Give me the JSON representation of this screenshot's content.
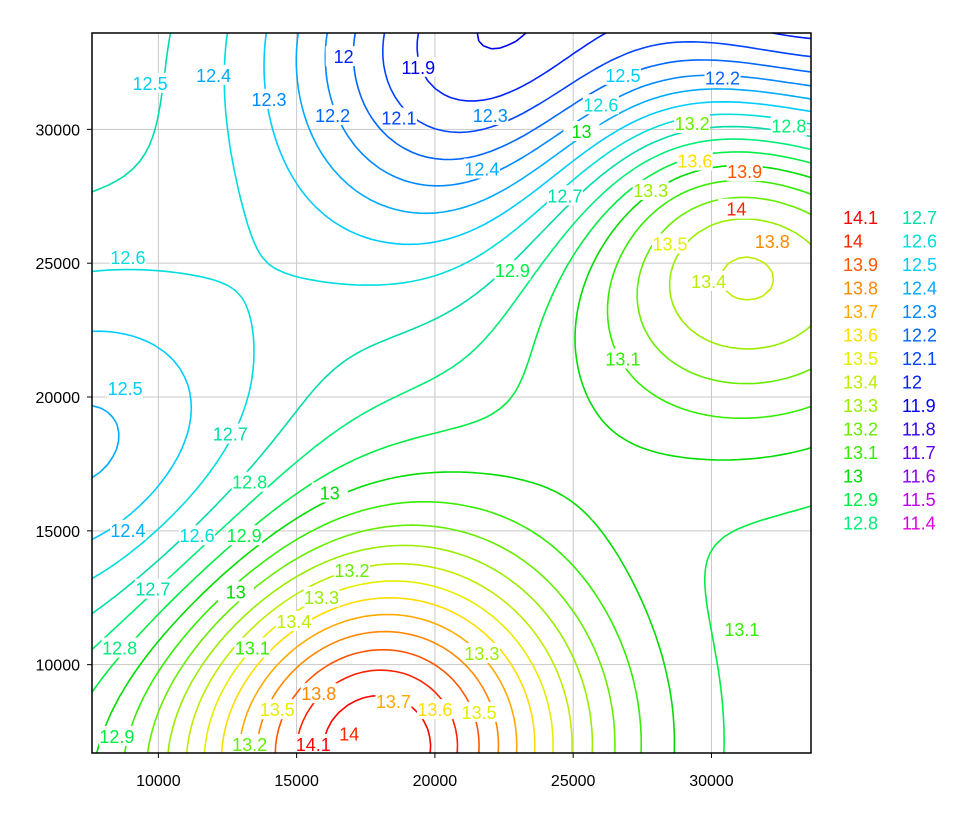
{
  "chart_data": {
    "type": "contour",
    "xlim": [
      7600,
      33600
    ],
    "ylim": [
      6700,
      33600
    ],
    "x_ticks": [
      10000,
      15000,
      20000,
      25000,
      30000
    ],
    "x_tick_labels": [
      "10000",
      "15000",
      "20000",
      "25000",
      "30000"
    ],
    "y_ticks": [
      10000,
      15000,
      20000,
      25000,
      30000
    ],
    "y_tick_labels": [
      "10000",
      "15000",
      "20000",
      "25000",
      "30000"
    ],
    "grid": true,
    "legend_placement": "right",
    "levels": [
      "14.1",
      "14",
      "13.9",
      "13.8",
      "13.7",
      "13.6",
      "13.5",
      "13.4",
      "13.3",
      "13.2",
      "13.1",
      "13",
      "12.9",
      "12.8",
      "12.7",
      "12.6",
      "12.5",
      "12.4",
      "12.3",
      "12.2",
      "12.1",
      "12",
      "11.9",
      "11.8",
      "11.7",
      "11.6",
      "11.5",
      "11.4"
    ],
    "level_colors": {
      "14.1": "#ff0000",
      "14": "#ff2200",
      "13.9": "#ff5500",
      "13.8": "#ff8800",
      "13.7": "#ffaa00",
      "13.6": "#ffdd00",
      "13.5": "#e6ee00",
      "13.4": "#bbee00",
      "13.3": "#99ee00",
      "13.2": "#66ee00",
      "13.1": "#33ee00",
      "13": "#00dd00",
      "12.9": "#00ee44",
      "12.8": "#00ee77",
      "12.7": "#00ddaa",
      "12.6": "#00dddd",
      "12.5": "#00ccff",
      "12.4": "#00aaff",
      "12.3": "#0088ff",
      "12.2": "#0066ff",
      "12.1": "#0044ff",
      "12": "#0022ff",
      "11.9": "#0000ee",
      "11.8": "#3300ee",
      "11.7": "#6600ee",
      "11.6": "#8800ee",
      "11.5": "#bb00ee",
      "11.4": "#dd00dd"
    },
    "sources": [
      {
        "x": 17800,
        "y": 7000,
        "value": 14.2,
        "kind": "high"
      },
      {
        "x": 31300,
        "y": 28000,
        "value": 14.05,
        "kind": "high"
      },
      {
        "x": 22200,
        "y": 32600,
        "value": 11.85,
        "kind": "low"
      },
      {
        "x": 33600,
        "y": 33600,
        "value": 11.4,
        "kind": "low"
      },
      {
        "x": 7700,
        "y": 17500,
        "value": 12.35,
        "kind": "low"
      }
    ],
    "contour_labels": [
      {
        "text": "12.5",
        "x": 9700,
        "y": 31700
      },
      {
        "text": "12.4",
        "x": 12000,
        "y": 32000
      },
      {
        "text": "12.3",
        "x": 14000,
        "y": 31100
      },
      {
        "text": "12.2",
        "x": 16300,
        "y": 30500
      },
      {
        "text": "12.1",
        "x": 18700,
        "y": 30400
      },
      {
        "text": "12",
        "x": 16700,
        "y": 32700
      },
      {
        "text": "11.9",
        "x": 19400,
        "y": 32300
      },
      {
        "text": "12.3",
        "x": 22000,
        "y": 30500
      },
      {
        "text": "12.4",
        "x": 21700,
        "y": 28500
      },
      {
        "text": "12.5",
        "x": 26800,
        "y": 32000
      },
      {
        "text": "12.6",
        "x": 26000,
        "y": 30900
      },
      {
        "text": "12.2",
        "x": 30400,
        "y": 31900
      },
      {
        "text": "12.8",
        "x": 32800,
        "y": 30100
      },
      {
        "text": "13",
        "x": 25300,
        "y": 29900
      },
      {
        "text": "12.7",
        "x": 24700,
        "y": 27500
      },
      {
        "text": "13.2",
        "x": 29300,
        "y": 30200
      },
      {
        "text": "13.3",
        "x": 27800,
        "y": 27700
      },
      {
        "text": "13.6",
        "x": 29400,
        "y": 28800
      },
      {
        "text": "13.9",
        "x": 31200,
        "y": 28400
      },
      {
        "text": "14",
        "x": 30900,
        "y": 27000
      },
      {
        "text": "13.8",
        "x": 32200,
        "y": 25800
      },
      {
        "text": "13.5",
        "x": 28500,
        "y": 25700
      },
      {
        "text": "13.4",
        "x": 29900,
        "y": 24300
      },
      {
        "text": "12.9",
        "x": 22800,
        "y": 24700
      },
      {
        "text": "13.1",
        "x": 26800,
        "y": 21400
      },
      {
        "text": "12.6",
        "x": 8900,
        "y": 25200
      },
      {
        "text": "12.5",
        "x": 8800,
        "y": 20300
      },
      {
        "text": "12.7",
        "x": 12600,
        "y": 18600
      },
      {
        "text": "12.8",
        "x": 13300,
        "y": 16800
      },
      {
        "text": "13",
        "x": 16200,
        "y": 16400
      },
      {
        "text": "12.4",
        "x": 8900,
        "y": 15000
      },
      {
        "text": "12.6",
        "x": 11400,
        "y": 14800
      },
      {
        "text": "12.9",
        "x": 13100,
        "y": 14800
      },
      {
        "text": "12.7",
        "x": 9800,
        "y": 12800
      },
      {
        "text": "13",
        "x": 12800,
        "y": 12700
      },
      {
        "text": "12.8",
        "x": 8600,
        "y": 10600
      },
      {
        "text": "13.2",
        "x": 17000,
        "y": 13500
      },
      {
        "text": "13.3",
        "x": 15900,
        "y": 12500
      },
      {
        "text": "13.4",
        "x": 14900,
        "y": 11600
      },
      {
        "text": "13.1",
        "x": 13400,
        "y": 10600
      },
      {
        "text": "13.5",
        "x": 14300,
        "y": 8300
      },
      {
        "text": "13.8",
        "x": 15800,
        "y": 8900
      },
      {
        "text": "13.7",
        "x": 18500,
        "y": 8600
      },
      {
        "text": "13.6",
        "x": 20000,
        "y": 8300
      },
      {
        "text": "13.5",
        "x": 21600,
        "y": 8200
      },
      {
        "text": "13.3",
        "x": 21700,
        "y": 10400
      },
      {
        "text": "13.1",
        "x": 31100,
        "y": 11300
      },
      {
        "text": "14.1",
        "x": 15600,
        "y": 7000
      },
      {
        "text": "14",
        "x": 16900,
        "y": 7400
      },
      {
        "text": "13.2",
        "x": 13300,
        "y": 7000
      },
      {
        "text": "12.9",
        "x": 8500,
        "y": 7300
      }
    ]
  }
}
